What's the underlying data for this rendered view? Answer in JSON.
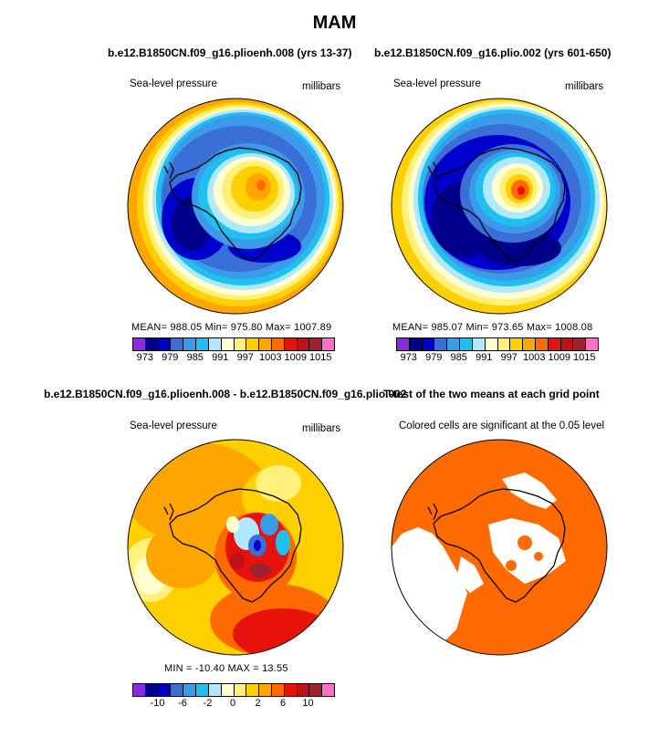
{
  "title": "MAM",
  "panels": [
    {
      "title": "b.e12.B1850CN.f09_g16.plioenh.008 (yrs 13-37)",
      "left_label": "Sea-level pressure",
      "right_label": "millibars",
      "stats": "MEAN= 988.05  Min= 975.80  Max= 1007.89"
    },
    {
      "title": "b.e12.B1850CN.f09_g16.plio.002 (yrs 601-650)",
      "left_label": "Sea-level pressure",
      "right_label": "millibars",
      "stats": "MEAN= 985.07  Min= 973.65  Max= 1008.08"
    },
    {
      "title": "b.e12.B1850CN.f09_g16.plioenh.008 - b.e12.B1850CN.f09_g16.plio.002",
      "left_label": "Sea-level pressure",
      "right_label": "millibars",
      "stats": "MIN = -10.40  MAX =   13.55"
    },
    {
      "title": "T-test of the two means at each grid point",
      "left_label": "Colored cells are significant at the 0.05 level"
    }
  ],
  "colorbars": {
    "slp": {
      "colors": [
        "#8a2be2",
        "#00008b",
        "#0000cd",
        "#3a6fd8",
        "#3c9be8",
        "#1ec0f0",
        "#b0e8ff",
        "#ffffd0",
        "#fff07a",
        "#ffd000",
        "#ffa500",
        "#ff6a00",
        "#e8120c",
        "#c0101a",
        "#a02030",
        "#ff6ec7"
      ],
      "labels": [
        "973",
        "979",
        "985",
        "991",
        "997",
        "1003",
        "1009",
        "1015"
      ]
    },
    "diff": {
      "colors": [
        "#8a2be2",
        "#00008b",
        "#0000cd",
        "#3a6fd8",
        "#3c9be8",
        "#1ec0f0",
        "#b0e8ff",
        "#ffffd0",
        "#fff07a",
        "#ffd000",
        "#ffa500",
        "#ff6a00",
        "#e8120c",
        "#c0101a",
        "#a02030",
        "#ff6ec7"
      ],
      "labels": [
        "-10",
        "-6",
        "-2",
        "0",
        "2",
        "6",
        "10"
      ]
    }
  },
  "colors": {
    "ttest_fill": "#ff6a00",
    "land_outline": "#000000"
  }
}
